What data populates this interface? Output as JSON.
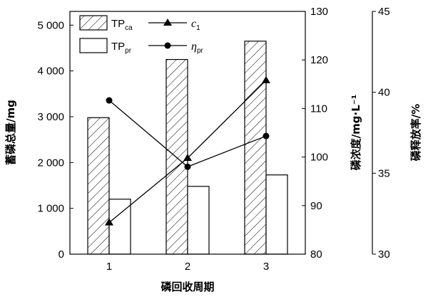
{
  "chart_data": {
    "type": "bar",
    "categories": [
      "1",
      "2",
      "3"
    ],
    "xlabel": "磷回收周期",
    "y_left": {
      "label": "蓄磷总量/mg",
      "ticks": [
        "0",
        "1 000",
        "2 000",
        "3 000",
        "4 000",
        "5 000"
      ],
      "lim": [
        0,
        5300
      ]
    },
    "y_right1": {
      "label": "磷浓度/mg·L⁻¹",
      "ticks": [
        "80",
        "90",
        "100",
        "110",
        "120",
        "130"
      ],
      "lim": [
        80,
        130
      ]
    },
    "y_right2": {
      "label": "磷释放率/%",
      "ticks": [
        "30",
        "35",
        "40",
        "45"
      ],
      "lim": [
        30,
        45
      ]
    },
    "series": [
      {
        "name": "TP",
        "sub": "ca",
        "kind": "bar",
        "pattern": "hatched",
        "axis": "left",
        "values": [
          2980,
          4250,
          4650
        ]
      },
      {
        "name": "TP",
        "sub": "pr",
        "kind": "bar",
        "pattern": "open",
        "axis": "left",
        "values": [
          1200,
          1480,
          1730
        ]
      },
      {
        "name": "c",
        "sub": "1",
        "kind": "line",
        "marker": "triangle",
        "axis": "right1",
        "values": [
          86.5,
          99.8,
          115.8
        ]
      },
      {
        "name": "η",
        "sub": "pr",
        "kind": "line",
        "marker": "circle",
        "axis": "right2",
        "values": [
          39.5,
          35.4,
          37.3
        ]
      }
    ]
  }
}
